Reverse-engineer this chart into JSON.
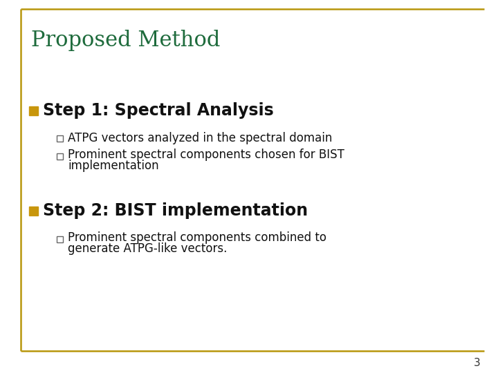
{
  "title": "Proposed Method",
  "title_color": "#1E6B3C",
  "title_fontsize": 22,
  "background_color": "#FFFFFF",
  "border_color": "#B8960C",
  "step1_text": "Step 1: Spectral Analysis",
  "step1_fontsize": 17,
  "step_bullet_color": "#C8960C",
  "sub1a": "ATPG vectors analyzed in the spectral domain",
  "sub1b_line1": "Prominent spectral components chosen for BIST",
  "sub1b_line2": "implementation",
  "step2_text": "Step 2: BIST implementation",
  "step2_fontsize": 17,
  "sub2a_line1": "Prominent spectral components combined to",
  "sub2a_line2": "generate ATPG-like vectors.",
  "sub_fontsize": 12,
  "page_number": "3",
  "page_number_fontsize": 11
}
